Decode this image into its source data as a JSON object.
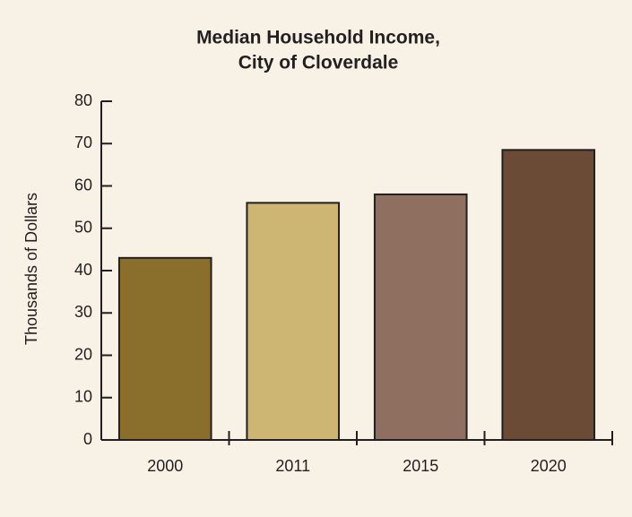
{
  "chart_data": {
    "type": "bar",
    "title": [
      "Median Household Income,",
      "City of Cloverdale"
    ],
    "y_label": "Thousands of Dollars",
    "categories": [
      "2000",
      "2011",
      "2015",
      "2020"
    ],
    "values": [
      43,
      56,
      58,
      68.5
    ],
    "colors": [
      "#8a6e2c",
      "#cdb673",
      "#8f7060",
      "#6b4a36"
    ],
    "ylim": [
      0,
      80
    ],
    "yticks": [
      0,
      10,
      20,
      30,
      40,
      50,
      60,
      70,
      80
    ],
    "grid": false
  }
}
